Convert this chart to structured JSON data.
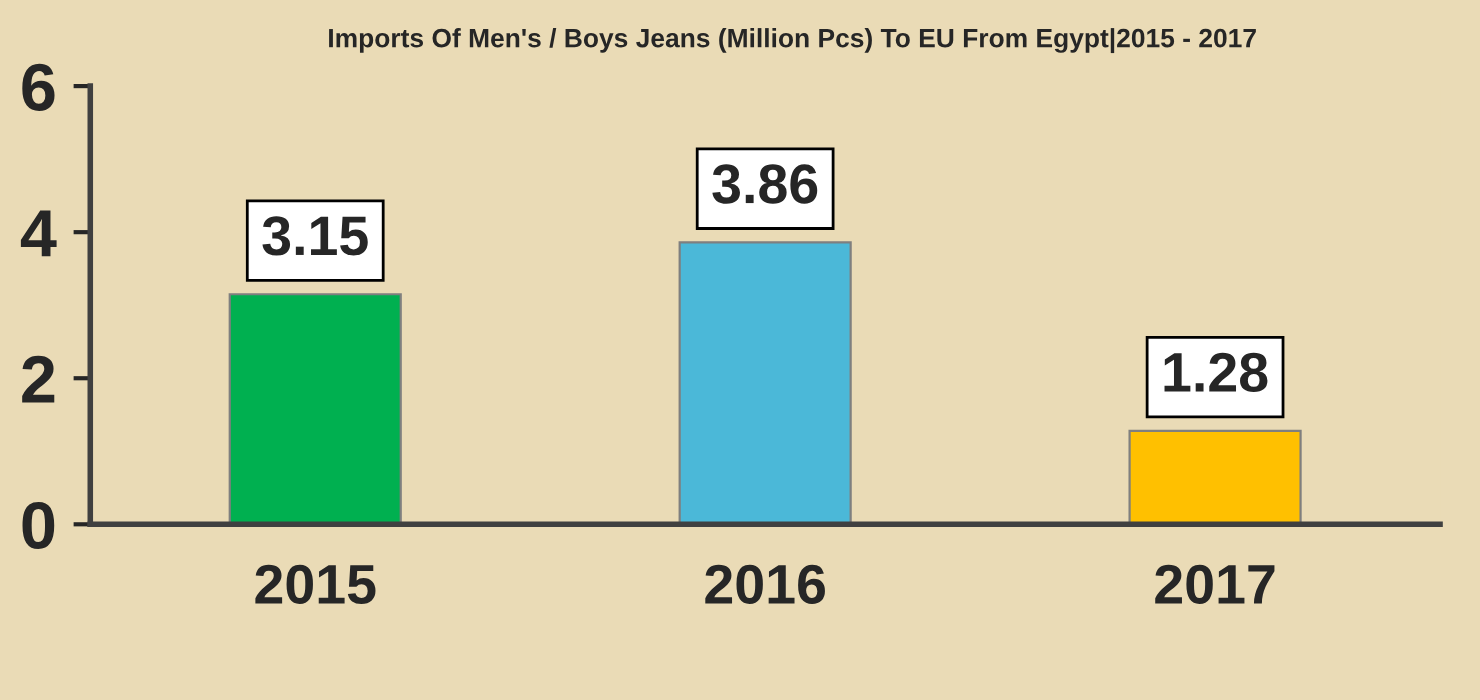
{
  "chart_data": {
    "type": "bar",
    "title": "Imports Of Men's / Boys Jeans (Million Pcs) To EU From Egypt|2015 - 2017",
    "categories": [
      "2015",
      "2016",
      "2017"
    ],
    "values": [
      3.15,
      3.86,
      1.28
    ],
    "colors": [
      "#00b050",
      "#4bb8d8",
      "#ffc000"
    ],
    "ylim": [
      0,
      6
    ],
    "yticks": [
      0,
      2,
      4,
      6
    ],
    "data_labels": true
  }
}
